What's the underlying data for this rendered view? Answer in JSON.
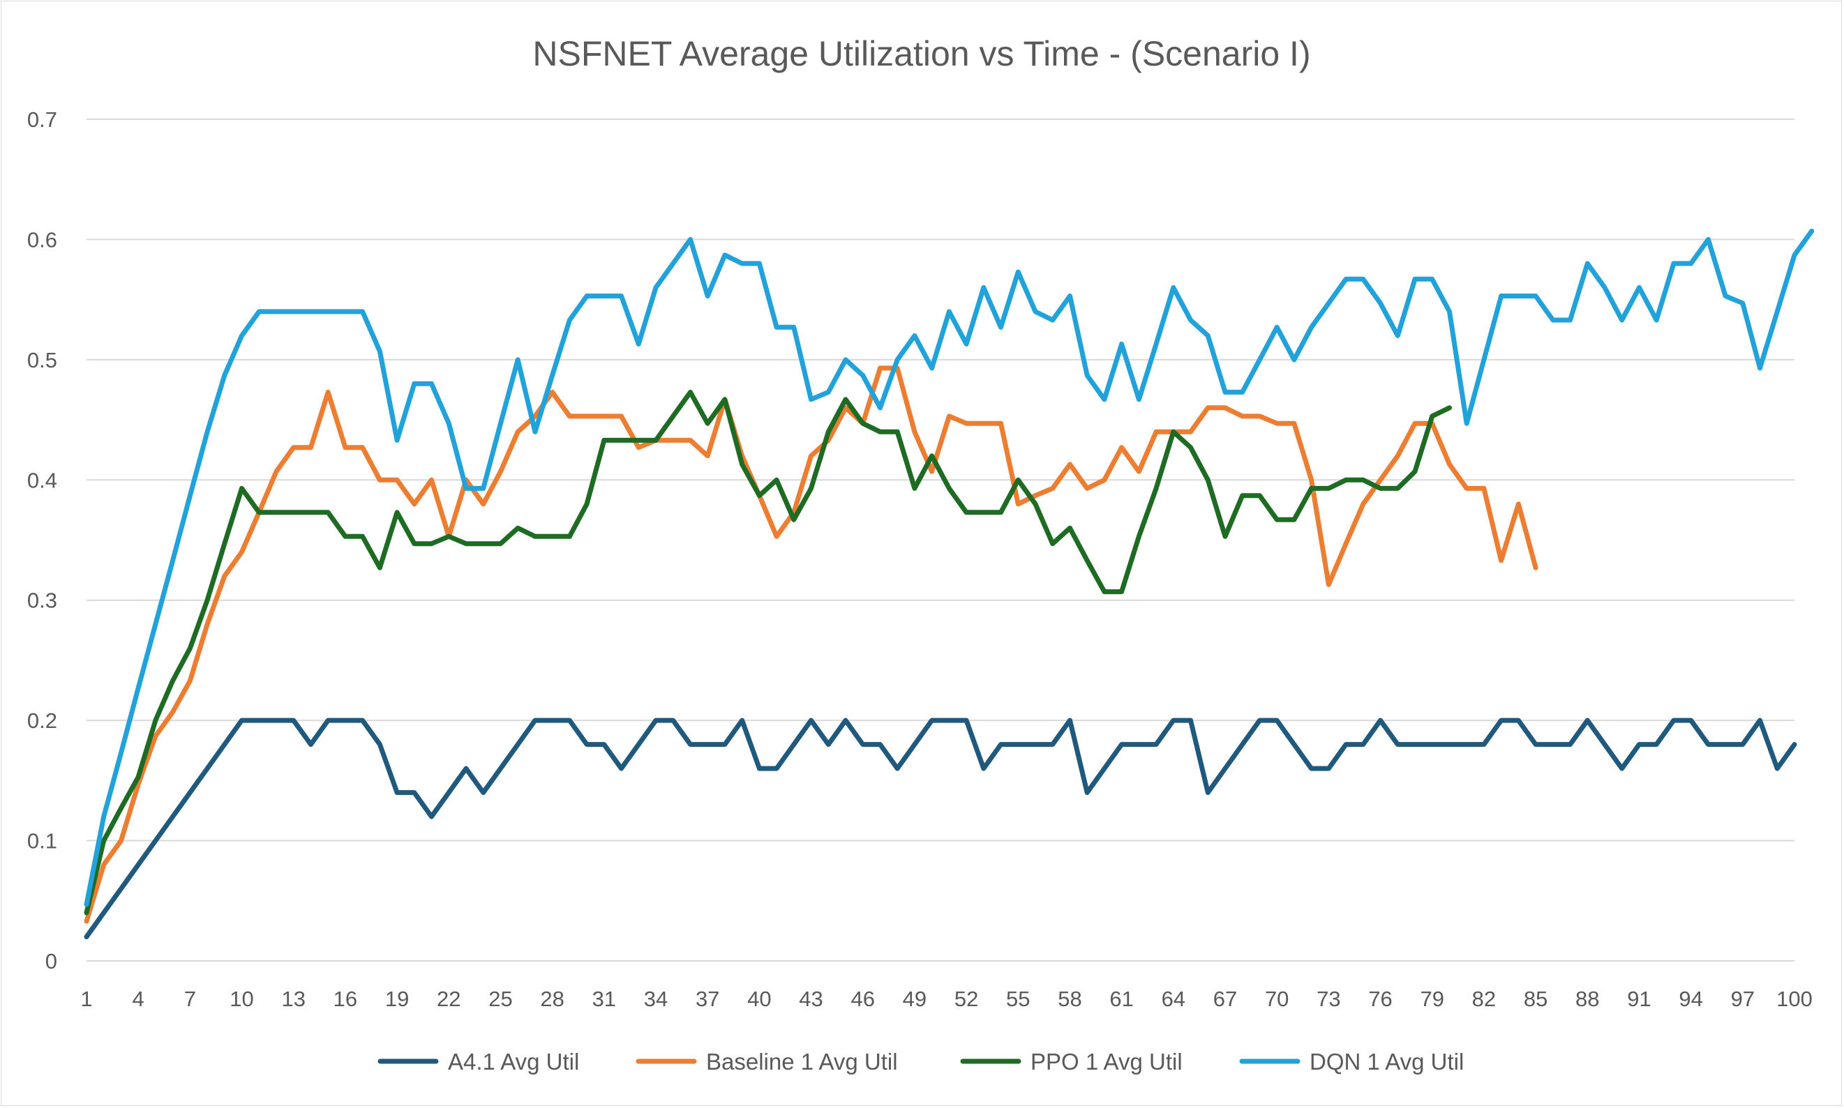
{
  "chart_data": {
    "type": "line",
    "title": "NSFNET Average Utilization vs Time - (Scenario I)",
    "xlabel": "",
    "ylabel": "",
    "ylim": [
      0,
      0.7
    ],
    "yticks": [
      "0",
      "0.1",
      "0.2",
      "0.3",
      "0.4",
      "0.5",
      "0.6",
      "0.7"
    ],
    "xlim": [
      1,
      100
    ],
    "xtick_labels": [
      "1",
      "4",
      "7",
      "10",
      "13",
      "16",
      "19",
      "22",
      "25",
      "28",
      "31",
      "34",
      "37",
      "40",
      "43",
      "46",
      "49",
      "52",
      "55",
      "58",
      "61",
      "64",
      "67",
      "70",
      "73",
      "76",
      "79",
      "82",
      "85",
      "88",
      "91",
      "94",
      "97",
      "100"
    ],
    "grid": true,
    "legend": "bottom",
    "series": [
      {
        "name": "A4.1 Avg Util",
        "color": "#1f5a7e",
        "values": [
          0.02,
          0.04,
          0.06,
          0.08,
          0.1,
          0.12,
          0.14,
          0.16,
          0.18,
          0.2,
          0.2,
          0.2,
          0.2,
          0.18,
          0.2,
          0.2,
          0.2,
          0.18,
          0.14,
          0.14,
          0.12,
          0.14,
          0.16,
          0.14,
          0.16,
          0.18,
          0.2,
          0.2,
          0.2,
          0.18,
          0.18,
          0.16,
          0.18,
          0.2,
          0.2,
          0.18,
          0.18,
          0.18,
          0.2,
          0.16,
          0.16,
          0.18,
          0.2,
          0.18,
          0.2,
          0.18,
          0.18,
          0.16,
          0.18,
          0.2,
          0.2,
          0.2,
          0.16,
          0.18,
          0.18,
          0.18,
          0.18,
          0.2,
          0.14,
          0.16,
          0.18,
          0.18,
          0.18,
          0.2,
          0.2,
          0.14,
          0.16,
          0.18,
          0.2,
          0.2,
          0.18,
          0.16,
          0.16,
          0.18,
          0.18,
          0.2,
          0.18,
          0.18,
          0.18,
          0.18,
          0.18,
          0.18,
          0.2,
          0.2,
          0.18,
          0.18,
          0.18,
          0.2,
          0.18,
          0.16,
          0.18,
          0.18,
          0.2,
          0.2,
          0.18,
          0.18,
          0.18,
          0.2,
          0.16,
          0.18
        ]
      },
      {
        "name": "Baseline 1 Avg Util",
        "color": "#ed7d31",
        "values": [
          0.033,
          0.08,
          0.1,
          0.147,
          0.187,
          0.207,
          0.233,
          0.28,
          0.32,
          0.34,
          0.373,
          0.407,
          0.427,
          0.427,
          0.473,
          0.427,
          0.427,
          0.4,
          0.4,
          0.38,
          0.4,
          0.353,
          0.4,
          0.38,
          0.407,
          0.44,
          0.453,
          0.473,
          0.453,
          0.453,
          0.453,
          0.453,
          0.427,
          0.433,
          0.433,
          0.433,
          0.42,
          0.467,
          0.42,
          0.387,
          0.353,
          0.373,
          0.42,
          0.433,
          0.46,
          0.447,
          0.493,
          0.493,
          0.44,
          0.407,
          0.453,
          0.447,
          0.447,
          0.447,
          0.38,
          0.387,
          0.393,
          0.413,
          0.393,
          0.4,
          0.427,
          0.407,
          0.44,
          0.44,
          0.44,
          0.46,
          0.46,
          0.453,
          0.453,
          0.447,
          0.447,
          0.4,
          0.313,
          0.347,
          0.38,
          0.4,
          0.42,
          0.447,
          0.447,
          0.413,
          0.393,
          0.393,
          0.333,
          0.38,
          0.327
        ]
      },
      {
        "name": "PPO 1 Avg Util",
        "color": "#1e6b24",
        "values": [
          0.04,
          0.1,
          0.127,
          0.153,
          0.2,
          0.233,
          0.26,
          0.3,
          0.347,
          0.393,
          0.373,
          0.373,
          0.373,
          0.373,
          0.373,
          0.353,
          0.353,
          0.327,
          0.373,
          0.347,
          0.347,
          0.353,
          0.347,
          0.347,
          0.347,
          0.36,
          0.353,
          0.353,
          0.353,
          0.38,
          0.433,
          0.433,
          0.433,
          0.433,
          0.453,
          0.473,
          0.447,
          0.467,
          0.413,
          0.387,
          0.4,
          0.367,
          0.393,
          0.44,
          0.467,
          0.447,
          0.44,
          0.44,
          0.393,
          0.42,
          0.393,
          0.373,
          0.373,
          0.373,
          0.4,
          0.38,
          0.347,
          0.36,
          0.333,
          0.307,
          0.307,
          0.353,
          0.393,
          0.44,
          0.427,
          0.4,
          0.353,
          0.387,
          0.387,
          0.367,
          0.367,
          0.393,
          0.393,
          0.4,
          0.4,
          0.393,
          0.393,
          0.407,
          0.453,
          0.46
        ]
      },
      {
        "name": "DQN 1 Avg Util",
        "color": "#22a2da",
        "values": [
          0.047,
          0.12,
          0.173,
          0.227,
          0.28,
          0.333,
          0.387,
          0.44,
          0.487,
          0.52,
          0.54,
          0.54,
          0.54,
          0.54,
          0.54,
          0.54,
          0.54,
          0.507,
          0.433,
          0.48,
          0.48,
          0.447,
          0.393,
          0.393,
          0.447,
          0.5,
          0.44,
          0.487,
          0.533,
          0.553,
          0.553,
          0.553,
          0.513,
          0.56,
          0.58,
          0.6,
          0.553,
          0.587,
          0.58,
          0.58,
          0.527,
          0.527,
          0.467,
          0.473,
          0.5,
          0.487,
          0.46,
          0.5,
          0.52,
          0.493,
          0.54,
          0.513,
          0.56,
          0.527,
          0.573,
          0.54,
          0.533,
          0.553,
          0.487,
          0.467,
          0.513,
          0.467,
          0.513,
          0.56,
          0.533,
          0.52,
          0.473,
          0.473,
          0.5,
          0.527,
          0.5,
          0.527,
          0.547,
          0.567,
          0.567,
          0.547,
          0.52,
          0.567,
          0.567,
          0.54,
          0.447,
          0.5,
          0.553,
          0.553,
          0.553,
          0.533,
          0.533,
          0.58,
          0.56,
          0.533,
          0.56,
          0.533,
          0.58,
          0.58,
          0.6,
          0.553,
          0.547,
          0.493,
          0.54,
          0.587,
          0.607
        ]
      }
    ]
  }
}
